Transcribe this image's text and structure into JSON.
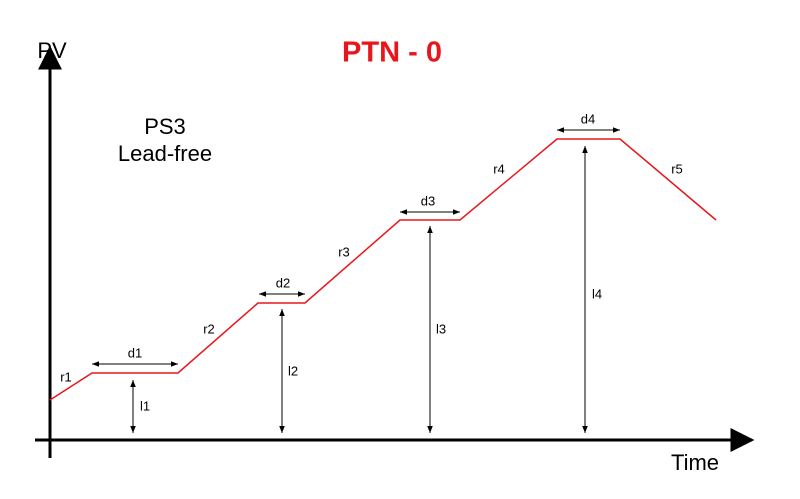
{
  "title": "PTN - 0",
  "axes": {
    "y_label": "PV",
    "x_label": "Time"
  },
  "profile": {
    "name": "PS3",
    "description": "Lead-free"
  },
  "ramps": [
    "r1",
    "r2",
    "r3",
    "r4",
    "r5"
  ],
  "dwells": [
    "d1",
    "d2",
    "d3",
    "d4"
  ],
  "levels": [
    "l1",
    "l2",
    "l3",
    "l4"
  ]
}
